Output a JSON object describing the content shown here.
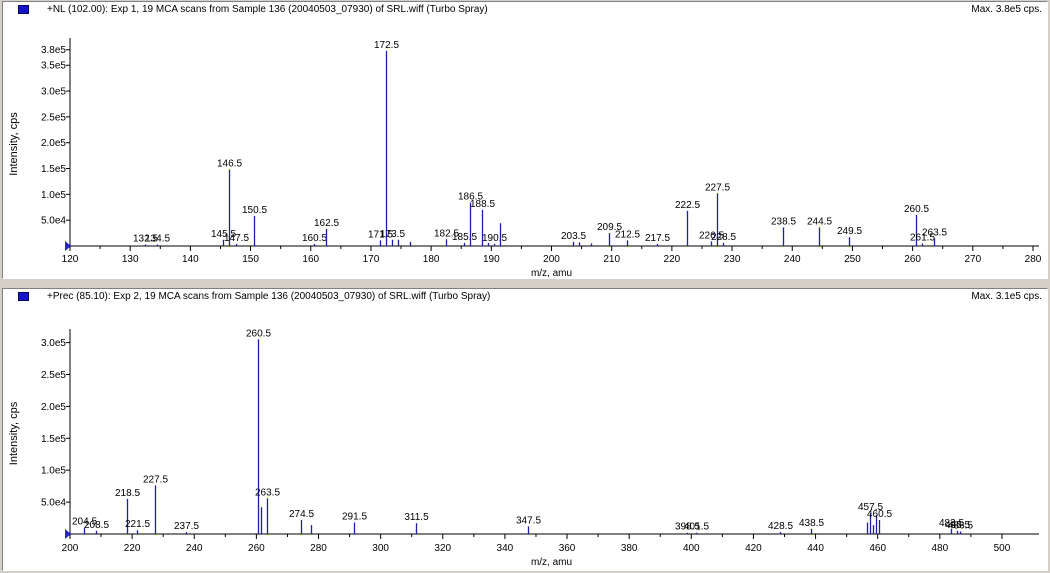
{
  "colors": {
    "trace": "#1e1eaa",
    "axis": "#000000",
    "marker": "#1414c8"
  },
  "panels": [
    {
      "title": "+NL (102.00): Exp 1, 19 MCA scans from Sample 136 (20040503_07930) of SRL.wiff (Turbo Spray)",
      "max_label": "Max. 3.8e5 cps."
    },
    {
      "title": "+Prec (85.10): Exp 2, 19 MCA scans from Sample 136 (20040503_07930) of SRL.wiff (Turbo Spray)",
      "max_label": "Max. 3.1e5 cps."
    }
  ],
  "chart_data": [
    {
      "type": "bar",
      "title": "+NL (102.00): Exp 1, 19 MCA scans from Sample 136 (20040503_07930) of SRL.wiff (Turbo Spray)",
      "xlabel": "m/z, amu",
      "ylabel": "Intensity, cps",
      "xlim": [
        120,
        280
      ],
      "ylim": [
        0,
        395000.0
      ],
      "x_ticks": [
        "120",
        "130",
        "140",
        "150",
        "160",
        "170",
        "180",
        "190",
        "200",
        "210",
        "220",
        "230",
        "240",
        "250",
        "260",
        "270",
        "280"
      ],
      "y_ticks": [
        {
          "v": 50000,
          "label": "5.0e4"
        },
        {
          "v": 100000,
          "label": "1.0e5"
        },
        {
          "v": 150000,
          "label": "1.5e5"
        },
        {
          "v": 200000,
          "label": "2.0e5"
        },
        {
          "v": 250000,
          "label": "2.5e5"
        },
        {
          "v": 300000,
          "label": "3.0e5"
        },
        {
          "v": 350000,
          "label": "3.5e5"
        },
        {
          "v": 380000,
          "label": "3.8e5"
        }
      ],
      "peaks": [
        {
          "x": 132.5,
          "y": 3000,
          "label": "132.5"
        },
        {
          "x": 134.5,
          "y": 3000,
          "label": "134.5"
        },
        {
          "x": 145.5,
          "y": 12000,
          "label": "145.5"
        },
        {
          "x": 146.5,
          "y": 148000,
          "label": "146.5"
        },
        {
          "x": 147.5,
          "y": 4000,
          "label": "147.5"
        },
        {
          "x": 150.5,
          "y": 58000,
          "label": "150.5"
        },
        {
          "x": 160.5,
          "y": 4000,
          "label": "160.5"
        },
        {
          "x": 162.5,
          "y": 33000,
          "label": "162.5"
        },
        {
          "x": 171.5,
          "y": 11000,
          "label": "171.5"
        },
        {
          "x": 172.5,
          "y": 378000,
          "label": "172.5"
        },
        {
          "x": 173.5,
          "y": 12000,
          "label": "173.5"
        },
        {
          "x": 174.5,
          "y": 12000,
          "label": ""
        },
        {
          "x": 176.5,
          "y": 8000,
          "label": ""
        },
        {
          "x": 182.5,
          "y": 13000,
          "label": "182.5"
        },
        {
          "x": 185.5,
          "y": 6000,
          "label": "185.5"
        },
        {
          "x": 186.5,
          "y": 84000,
          "label": "186.5"
        },
        {
          "x": 188.5,
          "y": 70000,
          "label": "188.5"
        },
        {
          "x": 189.5,
          "y": 6000,
          "label": ""
        },
        {
          "x": 190.5,
          "y": 4000,
          "label": "190.5"
        },
        {
          "x": 191.5,
          "y": 44000,
          "label": ""
        },
        {
          "x": 203.5,
          "y": 8000,
          "label": "203.5"
        },
        {
          "x": 204.5,
          "y": 7000,
          "label": ""
        },
        {
          "x": 206.5,
          "y": 5000,
          "label": ""
        },
        {
          "x": 209.5,
          "y": 25000,
          "label": "209.5"
        },
        {
          "x": 212.5,
          "y": 11000,
          "label": "212.5"
        },
        {
          "x": 217.5,
          "y": 4000,
          "label": "217.5"
        },
        {
          "x": 222.5,
          "y": 68000,
          "label": "222.5"
        },
        {
          "x": 226.5,
          "y": 9000,
          "label": "226.5"
        },
        {
          "x": 227.5,
          "y": 102000,
          "label": "227.5"
        },
        {
          "x": 228.5,
          "y": 6000,
          "label": "228.5"
        },
        {
          "x": 238.5,
          "y": 36000,
          "label": "238.5"
        },
        {
          "x": 244.5,
          "y": 36000,
          "label": "244.5"
        },
        {
          "x": 249.5,
          "y": 17000,
          "label": "249.5"
        },
        {
          "x": 260.5,
          "y": 60000,
          "label": "260.5"
        },
        {
          "x": 261.5,
          "y": 5000,
          "label": "261.5"
        },
        {
          "x": 263.5,
          "y": 15000,
          "label": "263.5"
        }
      ]
    },
    {
      "type": "bar",
      "title": "+Prec (85.10): Exp 2, 19 MCA scans from Sample 136 (20040503_07930) of SRL.wiff (Turbo Spray)",
      "xlabel": "m/z, amu",
      "ylabel": "Intensity, cps",
      "xlim": [
        200,
        510
      ],
      "ylim": [
        0,
        315000.0
      ],
      "x_ticks": [
        "200",
        "220",
        "240",
        "260",
        "280",
        "300",
        "320",
        "340",
        "360",
        "380",
        "400",
        "420",
        "440",
        "460",
        "480",
        "500"
      ],
      "y_ticks": [
        {
          "v": 50000,
          "label": "5.0e4"
        },
        {
          "v": 100000,
          "label": "1.0e5"
        },
        {
          "v": 150000,
          "label": "1.5e5"
        },
        {
          "v": 200000,
          "label": "2.0e5"
        },
        {
          "v": 250000,
          "label": "2.5e5"
        },
        {
          "v": 300000,
          "label": "3.0e5"
        }
      ],
      "peaks": [
        {
          "x": 204.5,
          "y": 10000,
          "label": "204.5"
        },
        {
          "x": 208.5,
          "y": 5000,
          "label": "208.5"
        },
        {
          "x": 218.5,
          "y": 55000,
          "label": "218.5"
        },
        {
          "x": 221.5,
          "y": 6000,
          "label": "221.5"
        },
        {
          "x": 227.5,
          "y": 76000,
          "label": "227.5"
        },
        {
          "x": 237.5,
          "y": 3000,
          "label": "237.5"
        },
        {
          "x": 260.5,
          "y": 305000,
          "label": "260.5"
        },
        {
          "x": 261.5,
          "y": 42000,
          "label": ""
        },
        {
          "x": 263.5,
          "y": 56000,
          "label": "263.5"
        },
        {
          "x": 274.5,
          "y": 22000,
          "label": "274.5"
        },
        {
          "x": 277.5,
          "y": 14000,
          "label": ""
        },
        {
          "x": 291.5,
          "y": 18000,
          "label": "291.5"
        },
        {
          "x": 311.5,
          "y": 17000,
          "label": "311.5"
        },
        {
          "x": 347.5,
          "y": 12000,
          "label": "347.5"
        },
        {
          "x": 398.5,
          "y": 2000,
          "label": "398.5"
        },
        {
          "x": 401.5,
          "y": 2000,
          "label": "401.5"
        },
        {
          "x": 428.5,
          "y": 3000,
          "label": "428.5"
        },
        {
          "x": 438.5,
          "y": 8000,
          "label": "438.5"
        },
        {
          "x": 456.5,
          "y": 18000,
          "label": ""
        },
        {
          "x": 457.5,
          "y": 33000,
          "label": "457.5"
        },
        {
          "x": 458.5,
          "y": 14000,
          "label": ""
        },
        {
          "x": 459.5,
          "y": 30000,
          "label": ""
        },
        {
          "x": 460.5,
          "y": 22000,
          "label": "460.5"
        },
        {
          "x": 483.5,
          "y": 8000,
          "label": "483.5"
        },
        {
          "x": 485.5,
          "y": 5000,
          "label": "485.5"
        },
        {
          "x": 486.5,
          "y": 4000,
          "label": "486.5"
        }
      ]
    }
  ]
}
